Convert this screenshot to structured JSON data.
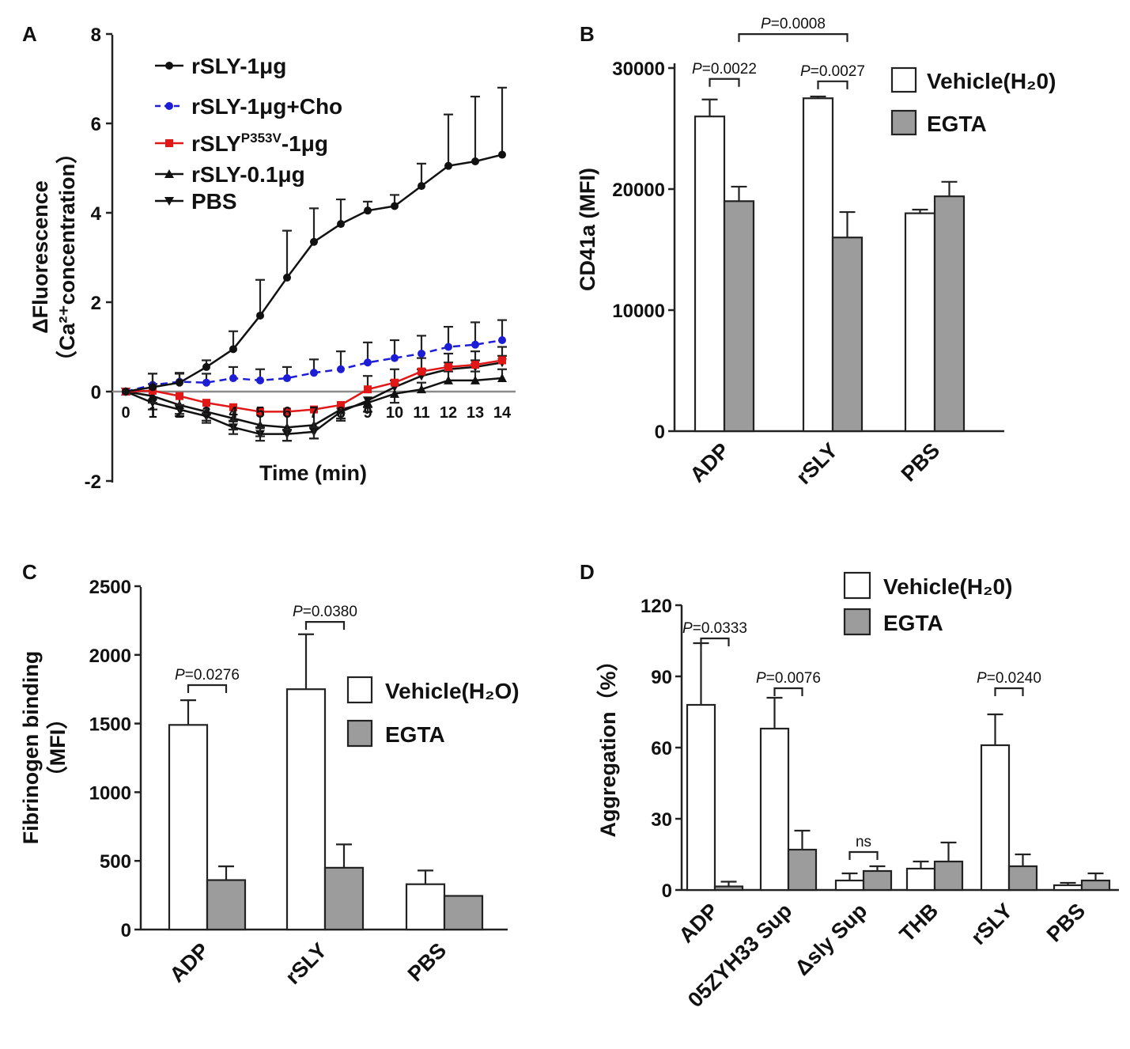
{
  "chart_data": [
    {
      "id": "A",
      "panel_label": "A",
      "type": "line",
      "xlabel": "Time (min)",
      "ylabel": [
        "ΔFluorescence",
        "（Ca²⁺concentration）"
      ],
      "ylim": [
        -2,
        8
      ],
      "yticks": [
        -2,
        0,
        2,
        4,
        6,
        8
      ],
      "x": [
        0,
        1,
        2,
        3,
        4,
        5,
        6,
        7,
        8,
        9,
        10,
        11,
        12,
        13,
        14
      ],
      "xticklabels": [
        "0",
        "1",
        "2",
        "3",
        "4",
        "5",
        "6",
        "7",
        "8",
        "9",
        "10",
        "11",
        "12",
        "13",
        "14"
      ],
      "series": [
        {
          "name": "rSLY-1μg",
          "color": "#111111",
          "marker": "circle",
          "dash": false,
          "values": [
            0,
            0.1,
            0.2,
            0.55,
            0.95,
            1.7,
            2.55,
            3.35,
            3.75,
            4.05,
            4.15,
            4.6,
            5.05,
            5.15,
            5.3
          ],
          "errors": [
            0,
            0.3,
            0.2,
            0.15,
            0.4,
            0.8,
            1.05,
            0.75,
            0.55,
            0.2,
            0.25,
            0.5,
            1.15,
            1.45,
            1.5
          ]
        },
        {
          "name": "rSLY-1μg+Cho",
          "color": "#1d1dd6",
          "marker": "circle",
          "dash": true,
          "values": [
            0,
            0.15,
            0.22,
            0.2,
            0.3,
            0.25,
            0.3,
            0.42,
            0.5,
            0.65,
            0.75,
            0.85,
            1.0,
            1.05,
            1.15
          ],
          "errors": [
            0,
            0.25,
            0.2,
            0.2,
            0.25,
            0.25,
            0.25,
            0.3,
            0.4,
            0.45,
            0.4,
            0.4,
            0.45,
            0.5,
            0.45
          ]
        },
        {
          "name": "rSLY^P353V-1μg",
          "color": "#e01818",
          "marker": "square",
          "dash": false,
          "values": [
            0,
            0.02,
            -0.1,
            -0.25,
            -0.35,
            -0.45,
            -0.45,
            -0.4,
            -0.3,
            0.05,
            0.2,
            0.45,
            0.55,
            0.6,
            0.7
          ],
          "errors": [
            0,
            0.15,
            0.2,
            0.25,
            0.3,
            0.35,
            0.4,
            0.4,
            0.35,
            0.3,
            0.3,
            0.3,
            0.3,
            0.3,
            0.3
          ]
        },
        {
          "name": "rSLY-0.1μg",
          "color": "#111111",
          "marker": "triangle-up",
          "dash": false,
          "values": [
            0,
            -0.1,
            -0.3,
            -0.45,
            -0.6,
            -0.75,
            -0.8,
            -0.75,
            -0.4,
            -0.25,
            -0.05,
            0.05,
            0.25,
            0.25,
            0.3
          ],
          "errors": [
            0,
            0.15,
            0.2,
            0.2,
            0.25,
            0.25,
            0.3,
            0.3,
            0.25,
            0.2,
            0.2,
            0.15,
            0.2,
            0.2,
            0.2
          ]
        },
        {
          "name": "PBS",
          "color": "#111111",
          "marker": "triangle-down",
          "dash": false,
          "values": [
            0,
            -0.25,
            -0.4,
            -0.55,
            -0.8,
            -0.95,
            -0.95,
            -0.9,
            -0.45,
            -0.2,
            0.1,
            0.35,
            0.5,
            0.55,
            0.65
          ],
          "errors": [
            0,
            0.15,
            0.15,
            0.15,
            0.15,
            0.15,
            0.15,
            0.15,
            0.15,
            0.15,
            0.15,
            0.15,
            0.15,
            0.15,
            0.15
          ]
        }
      ]
    },
    {
      "id": "B",
      "panel_label": "B",
      "type": "bar",
      "ylabel": "CD41a (MFI)",
      "ylim": [
        0,
        30000
      ],
      "yticks": [
        0,
        10000,
        20000,
        30000
      ],
      "categories": [
        "ADP",
        "rSLY",
        "PBS"
      ],
      "series": [
        {
          "name": "Vehicle(H₂0)",
          "color": "#ffffff",
          "values": [
            26000,
            27500,
            18000
          ],
          "errors": [
            1400,
            150,
            300
          ]
        },
        {
          "name": "EGTA",
          "color": "#9c9c9c",
          "values": [
            19000,
            16000,
            19400
          ],
          "errors": [
            1200,
            2100,
            1200
          ]
        }
      ],
      "annotations": [
        {
          "text": "P=0.0022",
          "from": "ADP:0",
          "to": "ADP:1",
          "level": 29100
        },
        {
          "text": "P=0.0027",
          "from": "rSLY:0",
          "to": "rSLY:1",
          "level": 28900
        },
        {
          "text": "P=0.0008",
          "from": "ADP:1",
          "to": "rSLY:1",
          "level": 32800
        }
      ]
    },
    {
      "id": "C",
      "panel_label": "C",
      "type": "bar",
      "ylabel": [
        "Fibrinogen binding",
        "（MFI）"
      ],
      "ylim": [
        0,
        2500
      ],
      "yticks": [
        0,
        500,
        1000,
        1500,
        2000,
        2500
      ],
      "categories": [
        "ADP",
        "rSLY",
        "PBS"
      ],
      "series": [
        {
          "name": "Vehicle(H₂O)",
          "color": "#ffffff",
          "values": [
            1490,
            1750,
            330
          ],
          "errors": [
            180,
            400,
            100
          ]
        },
        {
          "name": "EGTA",
          "color": "#9c9c9c",
          "values": [
            360,
            450,
            245
          ],
          "errors": [
            100,
            170,
            0
          ]
        }
      ],
      "annotations": [
        {
          "text": "P=0.0276",
          "from": "ADP:0",
          "to": "ADP:1",
          "level": 1780
        },
        {
          "text": "P=0.0380",
          "from": "rSLY:0",
          "to": "rSLY:1",
          "level": 2240
        }
      ]
    },
    {
      "id": "D",
      "panel_label": "D",
      "type": "bar",
      "ylabel": "Aggregation（%）",
      "ylim": [
        0,
        120
      ],
      "yticks": [
        0,
        30,
        60,
        90,
        120
      ],
      "categories": [
        "ADP",
        "05ZYH33 Sup",
        "Δsly Sup",
        "THB",
        "rSLY",
        "PBS"
      ],
      "series": [
        {
          "name": "Vehicle(H₂0)",
          "color": "#ffffff",
          "values": [
            78,
            68,
            4,
            9,
            61,
            2
          ],
          "errors": [
            26,
            13,
            3,
            3,
            13,
            1
          ]
        },
        {
          "name": "EGTA",
          "color": "#9c9c9c",
          "values": [
            1.5,
            17,
            8,
            12,
            10,
            4
          ],
          "errors": [
            2,
            8,
            2,
            8,
            5,
            3
          ]
        }
      ],
      "annotations": [
        {
          "text": "P=0.0333",
          "from": "ADP:0",
          "to": "ADP:1",
          "level": 106
        },
        {
          "text": "P=0.0076",
          "from": "05ZYH33 Sup:0",
          "to": "05ZYH33 Sup:1",
          "level": 85
        },
        {
          "text": "ns",
          "from": "Δsly Sup:0",
          "to": "Δsly Sup:1",
          "level": 16
        },
        {
          "text": "P=0.0240",
          "from": "rSLY:0",
          "to": "rSLY:1",
          "level": 85
        }
      ]
    }
  ]
}
